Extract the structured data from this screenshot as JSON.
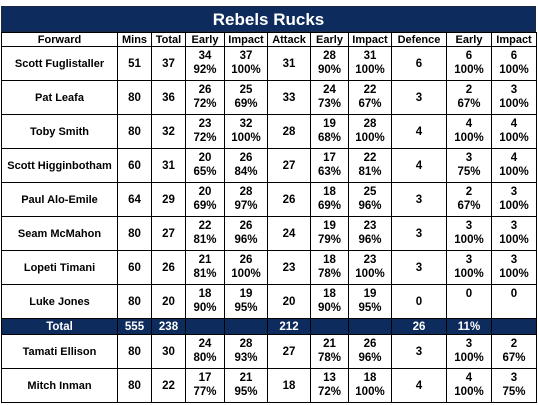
{
  "title": "Rebels Rucks",
  "columns": [
    "Forward",
    "Mins",
    "Total",
    "Early",
    "Impact",
    "Attack",
    "Early",
    "Impact",
    "Defence",
    "Early",
    "Impact"
  ],
  "players": [
    {
      "name": "Scott Fuglistaller",
      "mins": "51",
      "total": "37",
      "early": "34",
      "early_pct": "92%",
      "impact": "37",
      "impact_pct": "100%",
      "attack": "31",
      "a_early": "28",
      "a_early_pct": "90%",
      "a_impact": "31",
      "a_impact_pct": "100%",
      "defence": "6",
      "d_early": "6",
      "d_early_pct": "100%",
      "d_impact": "6",
      "d_impact_pct": "100%"
    },
    {
      "name": "Pat Leafa",
      "mins": "80",
      "total": "36",
      "early": "26",
      "early_pct": "72%",
      "impact": "25",
      "impact_pct": "69%",
      "attack": "33",
      "a_early": "24",
      "a_early_pct": "73%",
      "a_impact": "22",
      "a_impact_pct": "67%",
      "defence": "3",
      "d_early": "2",
      "d_early_pct": "67%",
      "d_impact": "3",
      "d_impact_pct": "100%"
    },
    {
      "name": "Toby Smith",
      "mins": "80",
      "total": "32",
      "early": "23",
      "early_pct": "72%",
      "impact": "32",
      "impact_pct": "100%",
      "attack": "28",
      "a_early": "19",
      "a_early_pct": "68%",
      "a_impact": "28",
      "a_impact_pct": "100%",
      "defence": "4",
      "d_early": "4",
      "d_early_pct": "100%",
      "d_impact": "4",
      "d_impact_pct": "100%"
    },
    {
      "name": "Scott Higginbotham",
      "mins": "60",
      "total": "31",
      "early": "20",
      "early_pct": "65%",
      "impact": "26",
      "impact_pct": "84%",
      "attack": "27",
      "a_early": "17",
      "a_early_pct": "63%",
      "a_impact": "22",
      "a_impact_pct": "81%",
      "defence": "4",
      "d_early": "3",
      "d_early_pct": "75%",
      "d_impact": "4",
      "d_impact_pct": "100%"
    },
    {
      "name": "Paul Alo-Emile",
      "mins": "64",
      "total": "29",
      "early": "20",
      "early_pct": "69%",
      "impact": "28",
      "impact_pct": "97%",
      "attack": "26",
      "a_early": "18",
      "a_early_pct": "69%",
      "a_impact": "25",
      "a_impact_pct": "96%",
      "defence": "3",
      "d_early": "2",
      "d_early_pct": "67%",
      "d_impact": "3",
      "d_impact_pct": "100%"
    },
    {
      "name": "Seam McMahon",
      "mins": "80",
      "total": "27",
      "early": "22",
      "early_pct": "81%",
      "impact": "26",
      "impact_pct": "96%",
      "attack": "24",
      "a_early": "19",
      "a_early_pct": "79%",
      "a_impact": "23",
      "a_impact_pct": "96%",
      "defence": "3",
      "d_early": "3",
      "d_early_pct": "100%",
      "d_impact": "3",
      "d_impact_pct": "100%"
    },
    {
      "name": "Lopeti Timani",
      "mins": "60",
      "total": "26",
      "early": "21",
      "early_pct": "81%",
      "impact": "26",
      "impact_pct": "100%",
      "attack": "23",
      "a_early": "18",
      "a_early_pct": "78%",
      "a_impact": "23",
      "a_impact_pct": "100%",
      "defence": "3",
      "d_early": "3",
      "d_early_pct": "100%",
      "d_impact": "3",
      "d_impact_pct": "100%"
    },
    {
      "name": "Luke Jones",
      "mins": "80",
      "total": "20",
      "early": "18",
      "early_pct": "90%",
      "impact": "19",
      "impact_pct": "95%",
      "attack": "20",
      "a_early": "18",
      "a_early_pct": "90%",
      "a_impact": "19",
      "a_impact_pct": "95%",
      "defence": "0",
      "d_early": "0",
      "d_early_pct": "",
      "d_impact": "0",
      "d_impact_pct": ""
    }
  ],
  "total_row": {
    "label": "Total",
    "mins": "555",
    "total": "238",
    "attack": "212",
    "defence": "26",
    "d_early": "11%"
  },
  "subs": [
    {
      "name": "Tamati Ellison",
      "mins": "80",
      "total": "30",
      "early": "24",
      "early_pct": "80%",
      "impact": "28",
      "impact_pct": "93%",
      "attack": "27",
      "a_early": "21",
      "a_early_pct": "78%",
      "a_impact": "26",
      "a_impact_pct": "96%",
      "defence": "3",
      "d_early": "3",
      "d_early_pct": "100%",
      "d_impact": "2",
      "d_impact_pct": "67%"
    },
    {
      "name": "Mitch Inman",
      "mins": "80",
      "total": "22",
      "early": "17",
      "early_pct": "77%",
      "impact": "21",
      "impact_pct": "95%",
      "attack": "18",
      "a_early": "13",
      "a_early_pct": "72%",
      "a_impact": "18",
      "a_impact_pct": "100%",
      "defence": "4",
      "d_early": "4",
      "d_early_pct": "100%",
      "d_impact": "3",
      "d_impact_pct": "75%"
    }
  ]
}
